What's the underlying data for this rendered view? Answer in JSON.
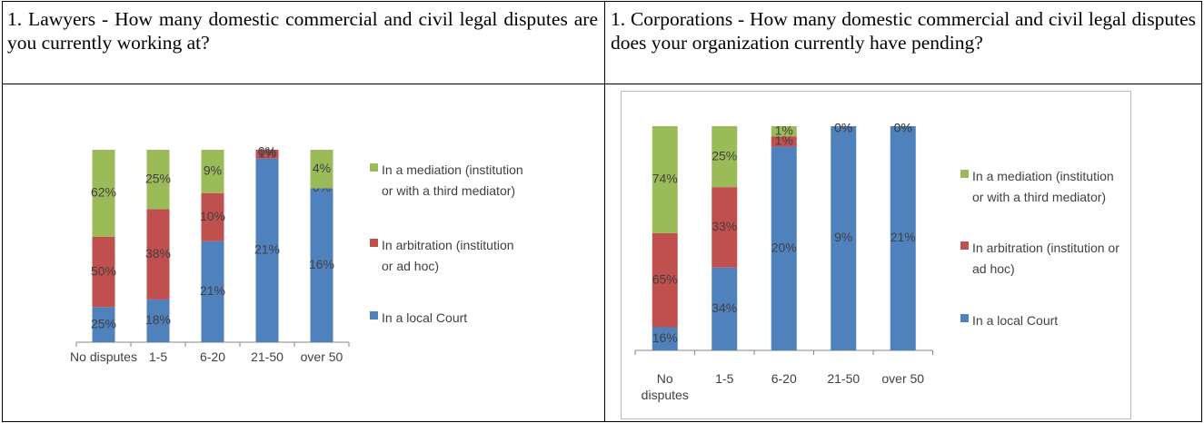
{
  "headers": [
    "1.  Lawyers - How many domestic commercial and civil legal disputes are you currently working at?",
    "1.  Corporations - How many domestic commercial and civil legal disputes does your organization currently have pending?"
  ],
  "chart_data": [
    {
      "type": "bar",
      "stacked": "percent",
      "categories": [
        "No disputes",
        "1-5",
        "6-20",
        "21-50",
        "over 50"
      ],
      "series": [
        {
          "name": "In a mediation (institution or with a third mediator)",
          "color": "#9bbb59",
          "values": [
            62,
            25,
            9,
            0,
            4
          ],
          "value_labels": [
            "62%",
            "25%",
            "9%",
            "0%",
            "4%"
          ]
        },
        {
          "name": "In arbitration (institution or ad hoc)",
          "color": "#c0504d",
          "values": [
            50,
            38,
            10,
            1,
            0
          ],
          "value_labels": [
            "50%",
            "38%",
            "10%",
            "1%",
            "0%"
          ]
        },
        {
          "name": "In a local Court",
          "color": "#4f81bd",
          "values": [
            25,
            18,
            21,
            21,
            16
          ],
          "value_labels": [
            "25%",
            "18%",
            "21%",
            "21%",
            "16%"
          ]
        }
      ],
      "legend": "right"
    },
    {
      "type": "bar",
      "stacked": "percent",
      "categories": [
        "No disputes",
        "1-5",
        "6-20",
        "21-50",
        "over 50"
      ],
      "series": [
        {
          "name": "In a mediation (institution or with a third mediator)",
          "color": "#9bbb59",
          "values": [
            74,
            25,
            1,
            0,
            0
          ],
          "value_labels": [
            "74%",
            "25%",
            "1%",
            "0%",
            "0%"
          ]
        },
        {
          "name": "In arbitration (institution or ad hoc)",
          "color": "#c0504d",
          "values": [
            65,
            33,
            1,
            0,
            0
          ],
          "value_labels": [
            "65%",
            "33%",
            "1%",
            "0%",
            "0%"
          ]
        },
        {
          "name": "In a local Court",
          "color": "#4f81bd",
          "values": [
            16,
            34,
            20,
            9,
            21
          ],
          "value_labels": [
            "16%",
            "34%",
            "20%",
            "9%",
            "21%"
          ]
        }
      ],
      "legend": "right"
    }
  ]
}
